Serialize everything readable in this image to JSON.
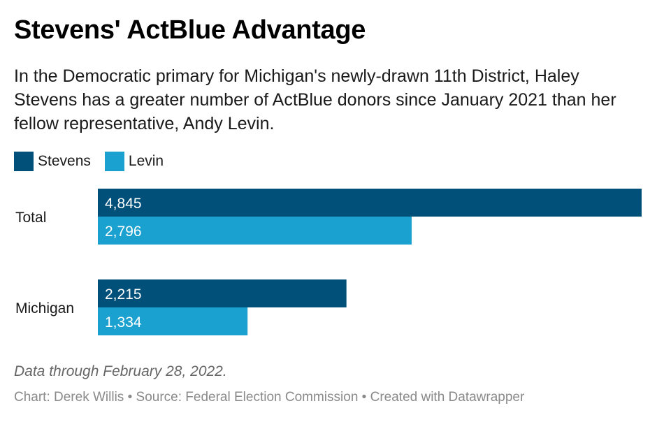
{
  "title": "Stevens' ActBlue Advantage",
  "subtitle": "In the Democratic primary for Michigan's newly-drawn 11th District, Haley Stevens has a greater number of ActBlue donors since January 2021 than her fellow representative, Andy Levin.",
  "note": "Data through February 28, 2022.",
  "footer": {
    "chart_by": "Chart: Derek Willis",
    "separator": " • ",
    "source": "Source: Federal Election Commission",
    "created_with": "Created with Datawrapper"
  },
  "colors": {
    "stevens": "#00507a",
    "levin": "#1ba1d0",
    "bar_label": "#ffffff"
  },
  "chart_data": {
    "type": "bar",
    "orientation": "horizontal",
    "categories": [
      "Total",
      "Michigan"
    ],
    "series": [
      {
        "name": "Stevens",
        "values": [
          4845,
          2215
        ],
        "labels": [
          "4,845",
          "2,215"
        ],
        "color": "#00507a"
      },
      {
        "name": "Levin",
        "values": [
          2796,
          1334
        ],
        "labels": [
          "2,796",
          "1,334"
        ],
        "color": "#1ba1d0"
      }
    ],
    "xlim": [
      0,
      4845
    ],
    "legend": "top-left",
    "grid": false
  }
}
